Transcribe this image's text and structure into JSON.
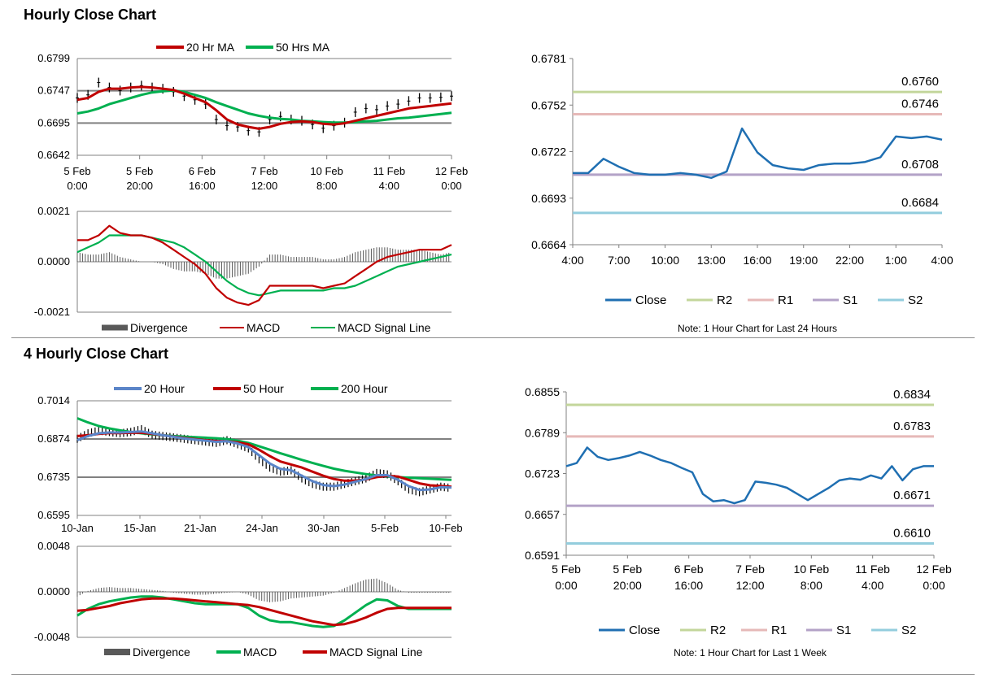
{
  "sections": {
    "hourly_title": "Hourly Close Chart",
    "four_hourly_title": "4 Hourly Close Chart"
  },
  "colors": {
    "ma20_red": "#c00000",
    "ma50_green": "#00b050",
    "ma20_blue": "#5b85c8",
    "close_blue": "#1f6fb2",
    "r2": "#c3d69b",
    "r1": "#e6b9b8",
    "s1": "#b3a2c7",
    "s2": "#93cddd",
    "bars": "#000000",
    "hist": "#595959"
  },
  "chart_data": [
    {
      "id": "hourly_price",
      "type": "line",
      "title": "Hourly Close Chart",
      "legend": [
        "20 Hr MA",
        "50 Hrs MA"
      ],
      "y_ticks": [
        "0.6799",
        "0.6747",
        "0.6695",
        "0.6642"
      ],
      "ylim": [
        0.6642,
        0.6799
      ],
      "x_ticks": [
        [
          "5 Feb",
          "0:00"
        ],
        [
          "5 Feb",
          "20:00"
        ],
        [
          "6 Feb",
          "16:00"
        ],
        [
          "7 Feb",
          "12:00"
        ],
        [
          "10 Feb",
          "8:00"
        ],
        [
          "11 Feb",
          "4:00"
        ],
        [
          "12 Feb",
          "0:00"
        ]
      ],
      "x": [
        0,
        4,
        8,
        12,
        16,
        20,
        24,
        28,
        32,
        36,
        40,
        44,
        48,
        52,
        56,
        60,
        64,
        68,
        72,
        76,
        80,
        84,
        88,
        92,
        96,
        100,
        104,
        108,
        112,
        116,
        120,
        124,
        128,
        132,
        136,
        140
      ],
      "series": [
        {
          "name": "Price",
          "values": [
            0.6735,
            0.674,
            0.676,
            0.6752,
            0.6747,
            0.6752,
            0.6755,
            0.6752,
            0.675,
            0.6745,
            0.6738,
            0.6732,
            0.6725,
            0.67,
            0.669,
            0.6688,
            0.6682,
            0.668,
            0.67,
            0.6705,
            0.67,
            0.6698,
            0.6692,
            0.6686,
            0.669,
            0.6695,
            0.6712,
            0.6718,
            0.6716,
            0.6722,
            0.6725,
            0.673,
            0.6735,
            0.6735,
            0.6736,
            0.6738
          ]
        },
        {
          "name": "20 Hr MA",
          "values": [
            0.6732,
            0.6735,
            0.6745,
            0.675,
            0.675,
            0.6752,
            0.6753,
            0.6752,
            0.675,
            0.6748,
            0.6742,
            0.6735,
            0.6728,
            0.6715,
            0.67,
            0.6692,
            0.6688,
            0.6685,
            0.6688,
            0.6693,
            0.6696,
            0.6697,
            0.6696,
            0.6693,
            0.6692,
            0.6694,
            0.6698,
            0.6702,
            0.6706,
            0.671,
            0.6714,
            0.6718,
            0.672,
            0.6722,
            0.6724,
            0.6726
          ]
        },
        {
          "name": "50 Hrs MA",
          "values": [
            0.671,
            0.6713,
            0.6718,
            0.6725,
            0.673,
            0.6735,
            0.674,
            0.6744,
            0.6746,
            0.6747,
            0.6745,
            0.674,
            0.6735,
            0.6728,
            0.6722,
            0.6716,
            0.671,
            0.6706,
            0.6703,
            0.6701,
            0.67,
            0.6698,
            0.6697,
            0.6696,
            0.6695,
            0.6695,
            0.6696,
            0.6697,
            0.6698,
            0.67,
            0.6702,
            0.6703,
            0.6705,
            0.6707,
            0.6709,
            0.6711
          ]
        }
      ]
    },
    {
      "id": "hourly_macd",
      "type": "line",
      "legend": [
        "Divergence",
        "MACD",
        "MACD Signal Line"
      ],
      "y_ticks": [
        "0.0021",
        "0.0000",
        "-0.0021"
      ],
      "ylim": [
        -0.0021,
        0.0021
      ],
      "x": [
        0,
        4,
        8,
        12,
        16,
        20,
        24,
        28,
        32,
        36,
        40,
        44,
        48,
        52,
        56,
        60,
        64,
        68,
        72,
        76,
        80,
        84,
        88,
        92,
        96,
        100,
        104,
        108,
        112,
        116,
        120,
        124,
        128,
        132,
        136,
        140
      ],
      "series": [
        {
          "name": "MACD",
          "values": [
            0.0009,
            0.0009,
            0.0011,
            0.0015,
            0.0012,
            0.0011,
            0.0011,
            0.001,
            0.0008,
            0.0005,
            0.0002,
            -0.0001,
            -0.0005,
            -0.0011,
            -0.0015,
            -0.0017,
            -0.0018,
            -0.0016,
            -0.001,
            -0.001,
            -0.001,
            -0.001,
            -0.001,
            -0.0011,
            -0.001,
            -0.0009,
            -0.0006,
            -0.0003,
            0.0,
            0.0002,
            0.0003,
            0.0004,
            0.0005,
            0.0005,
            0.0005,
            0.0007
          ]
        },
        {
          "name": "MACD Signal Line",
          "values": [
            0.0004,
            0.0006,
            0.0008,
            0.0011,
            0.0011,
            0.0011,
            0.0011,
            0.001,
            0.0009,
            0.0008,
            0.0006,
            0.0003,
            0.0,
            -0.0004,
            -0.0008,
            -0.0011,
            -0.0013,
            -0.0014,
            -0.0013,
            -0.0012,
            -0.0012,
            -0.0012,
            -0.0012,
            -0.0012,
            -0.0011,
            -0.0011,
            -0.001,
            -0.0008,
            -0.0006,
            -0.0004,
            -0.0002,
            -0.0001,
            0.0,
            0.0001,
            0.0002,
            0.0003
          ]
        },
        {
          "name": "Divergence",
          "values": [
            0.0004,
            0.0003,
            0.0003,
            0.0004,
            0.0002,
            0.0001,
            0.0,
            0.0,
            -0.0001,
            -0.0003,
            -0.0004,
            -0.0004,
            -0.0005,
            -0.0007,
            -0.0007,
            -0.0006,
            -0.0005,
            -0.0002,
            0.0003,
            0.0003,
            0.0002,
            0.0002,
            0.0002,
            0.0001,
            0.0001,
            0.0002,
            0.0004,
            0.0005,
            0.0006,
            0.0006,
            0.0005,
            0.0005,
            0.0005,
            0.0004,
            0.0003,
            0.0004
          ]
        }
      ]
    },
    {
      "id": "hourly_24h",
      "type": "line",
      "note": "Note: 1 Hour Chart for Last 24 Hours",
      "y_ticks": [
        "0.6781",
        "0.6752",
        "0.6722",
        "0.6693",
        "0.6664"
      ],
      "ylim": [
        0.6664,
        0.6781
      ],
      "x_ticks": [
        "4:00",
        "7:00",
        "10:00",
        "13:00",
        "16:00",
        "19:00",
        "22:00",
        "1:00",
        "4:00"
      ],
      "legend": [
        "Close",
        "R2",
        "R1",
        "S1",
        "S2"
      ],
      "x": [
        0,
        1,
        2,
        3,
        4,
        5,
        6,
        7,
        8,
        9,
        10,
        11,
        12,
        13,
        14,
        15,
        16,
        17,
        18,
        19,
        20,
        21,
        22,
        23,
        24
      ],
      "series": [
        {
          "name": "Close",
          "values": [
            0.6709,
            0.6709,
            0.6718,
            0.6713,
            0.6709,
            0.6708,
            0.6708,
            0.6709,
            0.6708,
            0.6706,
            0.671,
            0.6737,
            0.6722,
            0.6714,
            0.6712,
            0.6711,
            0.6714,
            0.6715,
            0.6715,
            0.6716,
            0.6719,
            0.6732,
            0.6731,
            0.6732,
            0.673
          ]
        }
      ],
      "levels": [
        {
          "name": "R2",
          "value": 0.676,
          "label": "0.6760"
        },
        {
          "name": "R1",
          "value": 0.6746,
          "label": "0.6746"
        },
        {
          "name": "S1",
          "value": 0.6708,
          "label": "0.6708"
        },
        {
          "name": "S2",
          "value": 0.6684,
          "label": "0.6684"
        }
      ]
    },
    {
      "id": "four_hourly_price",
      "type": "line",
      "title": "4 Hourly Close Chart",
      "legend": [
        "20 Hour",
        "50 Hour",
        "200 Hour"
      ],
      "y_ticks": [
        "0.7014",
        "0.6874",
        "0.6735",
        "0.6595"
      ],
      "ylim": [
        0.6595,
        0.7014
      ],
      "x_ticks": [
        "10-Jan",
        "15-Jan",
        "21-Jan",
        "24-Jan",
        "30-Jan",
        "5-Feb",
        "10-Feb"
      ],
      "x": [
        0,
        1,
        2,
        3,
        4,
        5,
        6,
        7,
        8,
        9,
        10,
        11,
        12,
        13,
        14,
        15,
        16,
        17,
        18,
        19,
        20,
        21,
        22,
        23,
        24,
        25,
        26,
        27,
        28,
        29,
        30,
        31,
        32,
        33,
        34,
        35
      ],
      "series": [
        {
          "name": "Price",
          "values": [
            0.6875,
            0.6895,
            0.6905,
            0.69,
            0.6895,
            0.69,
            0.691,
            0.689,
            0.6885,
            0.688,
            0.6875,
            0.687,
            0.6865,
            0.686,
            0.687,
            0.6855,
            0.684,
            0.68,
            0.677,
            0.6755,
            0.676,
            0.673,
            0.671,
            0.67,
            0.67,
            0.671,
            0.672,
            0.673,
            0.675,
            0.6745,
            0.672,
            0.669,
            0.668,
            0.669,
            0.67,
            0.6695
          ]
        },
        {
          "name": "20 Hour",
          "values": [
            0.687,
            0.6885,
            0.6895,
            0.6898,
            0.6898,
            0.69,
            0.6902,
            0.6895,
            0.6888,
            0.6882,
            0.6876,
            0.6872,
            0.6868,
            0.6864,
            0.6866,
            0.6858,
            0.6845,
            0.6815,
            0.6785,
            0.6765,
            0.676,
            0.674,
            0.672,
            0.6706,
            0.6702,
            0.6708,
            0.6718,
            0.6728,
            0.6742,
            0.6742,
            0.6725,
            0.6702,
            0.6688,
            0.669,
            0.6698,
            0.6697
          ]
        },
        {
          "name": "50 Hour",
          "values": [
            0.6885,
            0.6888,
            0.6893,
            0.6896,
            0.6896,
            0.6897,
            0.6897,
            0.6893,
            0.6888,
            0.6883,
            0.6878,
            0.6874,
            0.687,
            0.6867,
            0.6866,
            0.6862,
            0.6855,
            0.6835,
            0.6812,
            0.6792,
            0.6781,
            0.677,
            0.6755,
            0.674,
            0.6728,
            0.6722,
            0.6722,
            0.6727,
            0.6735,
            0.674,
            0.6737,
            0.6725,
            0.6712,
            0.6705,
            0.6703,
            0.67
          ]
        },
        {
          "name": "200 Hour",
          "values": [
            0.695,
            0.6935,
            0.6922,
            0.6913,
            0.6906,
            0.69,
            0.6895,
            0.6891,
            0.6888,
            0.6885,
            0.6883,
            0.6881,
            0.6879,
            0.6877,
            0.6874,
            0.6868,
            0.686,
            0.6848,
            0.6835,
            0.6822,
            0.681,
            0.6798,
            0.6787,
            0.6776,
            0.6766,
            0.6758,
            0.6752,
            0.6746,
            0.6741,
            0.6738,
            0.6735,
            0.6733,
            0.6731,
            0.6729,
            0.6727,
            0.6725
          ]
        }
      ]
    },
    {
      "id": "four_hourly_macd",
      "type": "line",
      "legend": [
        "Divergence",
        "MACD",
        "MACD Signal Line"
      ],
      "y_ticks": [
        "0.0048",
        "0.0000",
        "-0.0048"
      ],
      "ylim": [
        -0.0048,
        0.0048
      ],
      "x": [
        0,
        1,
        2,
        3,
        4,
        5,
        6,
        7,
        8,
        9,
        10,
        11,
        12,
        13,
        14,
        15,
        16,
        17,
        18,
        19,
        20,
        21,
        22,
        23,
        24,
        25,
        26,
        27,
        28,
        29,
        30,
        31,
        32,
        33,
        34,
        35
      ],
      "series": [
        {
          "name": "MACD",
          "values": [
            -0.0025,
            -0.0018,
            -0.0013,
            -0.001,
            -0.0008,
            -0.0006,
            -0.0005,
            -0.0005,
            -0.0006,
            -0.0008,
            -0.001,
            -0.0012,
            -0.0013,
            -0.0013,
            -0.0013,
            -0.0013,
            -0.0017,
            -0.0025,
            -0.003,
            -0.0032,
            -0.0032,
            -0.0034,
            -0.0036,
            -0.0037,
            -0.0036,
            -0.003,
            -0.0022,
            -0.0014,
            -0.0008,
            -0.0009,
            -0.0015,
            -0.0018,
            -0.0018,
            -0.0018,
            -0.0018,
            -0.0018
          ]
        },
        {
          "name": "MACD Signal Line",
          "values": [
            -0.002,
            -0.0019,
            -0.0017,
            -0.0015,
            -0.0012,
            -0.001,
            -0.0008,
            -0.0007,
            -0.0007,
            -0.0007,
            -0.0008,
            -0.0009,
            -0.001,
            -0.0011,
            -0.0012,
            -0.0013,
            -0.0014,
            -0.0016,
            -0.0019,
            -0.0022,
            -0.0025,
            -0.0028,
            -0.0031,
            -0.0033,
            -0.0035,
            -0.0034,
            -0.0031,
            -0.0027,
            -0.0022,
            -0.0018,
            -0.0017,
            -0.0017,
            -0.0017,
            -0.0017,
            -0.0017,
            -0.0017
          ]
        },
        {
          "name": "Divergence",
          "values": [
            -0.0005,
            0.0001,
            0.0004,
            0.0005,
            0.0004,
            0.0004,
            0.0003,
            0.0002,
            0.0001,
            -0.0001,
            -0.0002,
            -0.0003,
            -0.0003,
            -0.0002,
            -0.0001,
            0.0,
            -0.0003,
            -0.0009,
            -0.0011,
            -0.001,
            -0.0007,
            -0.0006,
            -0.0005,
            -0.0004,
            -0.0001,
            0.0004,
            0.0009,
            0.0013,
            0.0014,
            0.0009,
            0.0002,
            -0.0001,
            -0.0001,
            -0.0001,
            -0.0001,
            -0.0001
          ]
        }
      ]
    },
    {
      "id": "four_hourly_week",
      "type": "line",
      "note": "Note: 1 Hour Chart for Last 1 Week",
      "y_ticks": [
        "0.6855",
        "0.6789",
        "0.6723",
        "0.6657",
        "0.6591"
      ],
      "ylim": [
        0.6591,
        0.6855
      ],
      "x_ticks": [
        [
          "5 Feb",
          "0:00"
        ],
        [
          "5 Feb",
          "20:00"
        ],
        [
          "6 Feb",
          "16:00"
        ],
        [
          "7 Feb",
          "12:00"
        ],
        [
          "10 Feb",
          "8:00"
        ],
        [
          "11 Feb",
          "4:00"
        ],
        [
          "12 Feb",
          "0:00"
        ]
      ],
      "legend": [
        "Close",
        "R2",
        "R1",
        "S1",
        "S2"
      ],
      "x": [
        0,
        4,
        8,
        12,
        16,
        20,
        24,
        28,
        32,
        36,
        40,
        44,
        48,
        52,
        56,
        60,
        64,
        68,
        72,
        76,
        80,
        84,
        88,
        92,
        96,
        100,
        104,
        108,
        112,
        116,
        120,
        124,
        128,
        132,
        136,
        140
      ],
      "series": [
        {
          "name": "Close",
          "values": [
            0.6735,
            0.674,
            0.6765,
            0.675,
            0.6745,
            0.6748,
            0.6752,
            0.6758,
            0.6752,
            0.6745,
            0.674,
            0.6732,
            0.6725,
            0.669,
            0.6678,
            0.668,
            0.6675,
            0.668,
            0.671,
            0.6708,
            0.6705,
            0.67,
            0.669,
            0.668,
            0.669,
            0.67,
            0.6712,
            0.6715,
            0.6713,
            0.672,
            0.6715,
            0.6735,
            0.6712,
            0.673,
            0.6735,
            0.6735
          ]
        }
      ],
      "levels": [
        {
          "name": "R2",
          "value": 0.6834,
          "label": "0.6834"
        },
        {
          "name": "R1",
          "value": 0.6783,
          "label": "0.6783"
        },
        {
          "name": "S1",
          "value": 0.6671,
          "label": "0.6671"
        },
        {
          "name": "S2",
          "value": 0.661,
          "label": "0.6610"
        }
      ]
    }
  ]
}
